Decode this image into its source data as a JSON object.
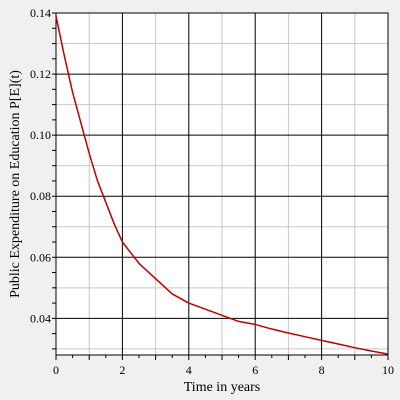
{
  "chart_data": {
    "type": "line",
    "title": "",
    "xlabel": "Time in years",
    "ylabel": "Public Expenditure on Education P[E](t)",
    "xlim": [
      0,
      10
    ],
    "ylim": [
      0.028,
      0.14
    ],
    "x_ticks": [
      "0",
      "2",
      "4",
      "6",
      "8",
      "10"
    ],
    "y_ticks": [
      "0.04",
      "0.06",
      "0.08",
      "0.10",
      "0.12",
      "0.14"
    ],
    "grid": true,
    "legend": "none",
    "series": [
      {
        "color": "#c00000",
        "x": [
          0,
          0.25,
          0.5,
          0.75,
          1,
          1.25,
          1.5,
          1.75,
          2,
          2.5,
          3,
          3.5,
          4,
          4.5,
          5,
          5.5,
          6,
          6.5,
          7,
          7.5,
          8,
          8.5,
          9,
          9.5,
          10
        ],
        "y": [
          0.139,
          0.126,
          0.114,
          0.104,
          0.094,
          0.085,
          0.078,
          0.071,
          0.065,
          0.058,
          0.053,
          0.048,
          0.045,
          0.043,
          0.041,
          0.039,
          0.038,
          0.0365,
          0.0352,
          0.034,
          0.0328,
          0.0316,
          0.0304,
          0.0293,
          0.0283
        ]
      }
    ]
  }
}
